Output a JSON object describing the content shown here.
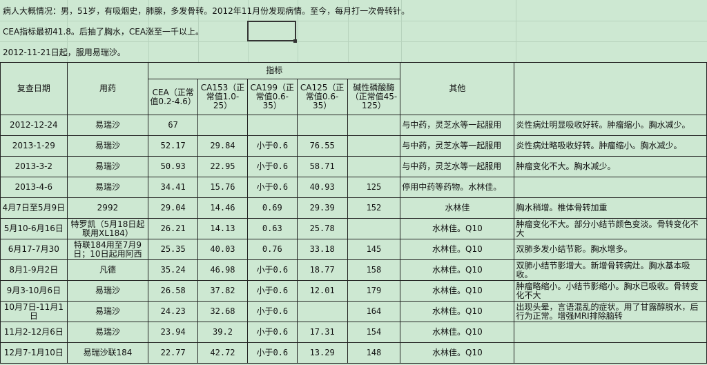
{
  "notes": [
    "病人大概情况：男，51岁，有吸烟史，肺腺，多发骨转。2012年11月份发现病情。至今，每月打一次骨转针。",
    "CEA指标最初41.8。后抽了胸水，CEA涨至一千以上。",
    "2012-11-21日起，服用易瑞沙。"
  ],
  "headers": {
    "date": "复查日期",
    "drug": "用药",
    "indicators": "指标",
    "cea": "CEA（正常值0.2-4.6）",
    "ca153": "CA153（正常值1.0-25）",
    "ca199": "CA199（正常值0.6-35）",
    "ca125": "CA125（正常值0.6-35）",
    "alp": "碱性磷酸酶（正常值45-125）",
    "other": "其他",
    "remark": ""
  },
  "rows": [
    {
      "date": "2012-12-24",
      "drug": "易瑞沙",
      "cea": "67",
      "ca153": "",
      "ca199": "",
      "ca125": "",
      "alp": "",
      "other": "与中药，灵芝水等一起服用",
      "remark": "炎性病灶明显吸收好转。肿瘤缩小。胸水减少。"
    },
    {
      "date": "2013-1-29",
      "drug": "易瑞沙",
      "cea": "52.17",
      "ca153": "29.84",
      "ca199": "小于0.6",
      "ca125": "76.55",
      "alp": "",
      "other": "与中药，灵芝水等一起服用",
      "remark": "炎性病灶略吸收好转。肿瘤缩小。胸水减少。"
    },
    {
      "date": "2013-3-2",
      "drug": "易瑞沙",
      "cea": "50.93",
      "ca153": "22.95",
      "ca199": "小于0.6",
      "ca125": "58.71",
      "alp": "",
      "other": "与中药，灵芝水等一起服用",
      "remark": "肿瘤变化不大。胸水减少。"
    },
    {
      "date": "2013-4-6",
      "drug": "易瑞沙",
      "cea": "34.41",
      "ca153": "15.76",
      "ca199": "小于0.6",
      "ca125": "40.93",
      "alp": "125",
      "other": "停用中药等药物。水林佳。",
      "remark": ""
    },
    {
      "date": "4月7日至5月9日",
      "drug": "2992",
      "cea": "29.04",
      "ca153": "14.46",
      "ca199": "0.69",
      "ca125": "29.39",
      "alp": "152",
      "other": "水林佳",
      "remark": "胸水稍增。椎体骨转加重"
    },
    {
      "date": "5月10-6月16日",
      "drug": "特罗凯（5月18日起联用XL184）",
      "cea": "26.21",
      "ca153": "14.13",
      "ca199": "0.63",
      "ca125": "25.78",
      "alp": "",
      "other": "水林佳。Q10",
      "remark": "肿瘤变化不大。部分小结节颜色变淡。骨转变化不大"
    },
    {
      "date": "6月17-7月30",
      "drug": "特联184用至7月9日；10日起用阿西",
      "cea": "25.35",
      "ca153": "40.03",
      "ca199": "0.76",
      "ca125": "33.18",
      "alp": "145",
      "other": "水林佳。Q10",
      "remark": "双肺多发小结节影。胸水增多。"
    },
    {
      "date": "8月1-9月2日",
      "drug": "凡德",
      "cea": "35.24",
      "ca153": "46.98",
      "ca199": "小于0.6",
      "ca125": "18.77",
      "alp": "158",
      "other": "水林佳。Q10",
      "remark": "双肺小结节影增大。新增骨转病灶。胸水基本吸收。"
    },
    {
      "date": "9月3-10月6日",
      "drug": "易瑞沙",
      "cea": "26.58",
      "ca153": "37.82",
      "ca199": "小于0.6",
      "ca125": "12.01",
      "alp": "179",
      "other": "水林佳。Q10",
      "remark": "肿瘤略缩小。小结节影缩小。胸水已吸收。骨转变化不大"
    },
    {
      "date": "10月7日-11月1日",
      "drug": "易瑞沙",
      "cea": "24.23",
      "ca153": "32.68",
      "ca199": "小于0.6",
      "ca125": "",
      "alp": "164",
      "other": "水林佳。Q10",
      "remark": "出现头晕，言语混乱的症状。用了甘露醇脱水，后行为正常。增强MRI排除脑转"
    },
    {
      "date": "11月2-12月6日",
      "drug": "易瑞沙",
      "cea": "23.94",
      "ca153": "39.2",
      "ca199": "小于0.6",
      "ca125": "17.31",
      "alp": "154",
      "other": "水林佳。Q10",
      "remark": ""
    },
    {
      "date": "12月7-1月10日",
      "drug": "易瑞沙联184",
      "cea": "22.77",
      "ca153": "42.72",
      "ca199": "小于0.6",
      "ca125": "13.29",
      "alp": "148",
      "other": "水林佳。Q10",
      "remark": ""
    }
  ]
}
